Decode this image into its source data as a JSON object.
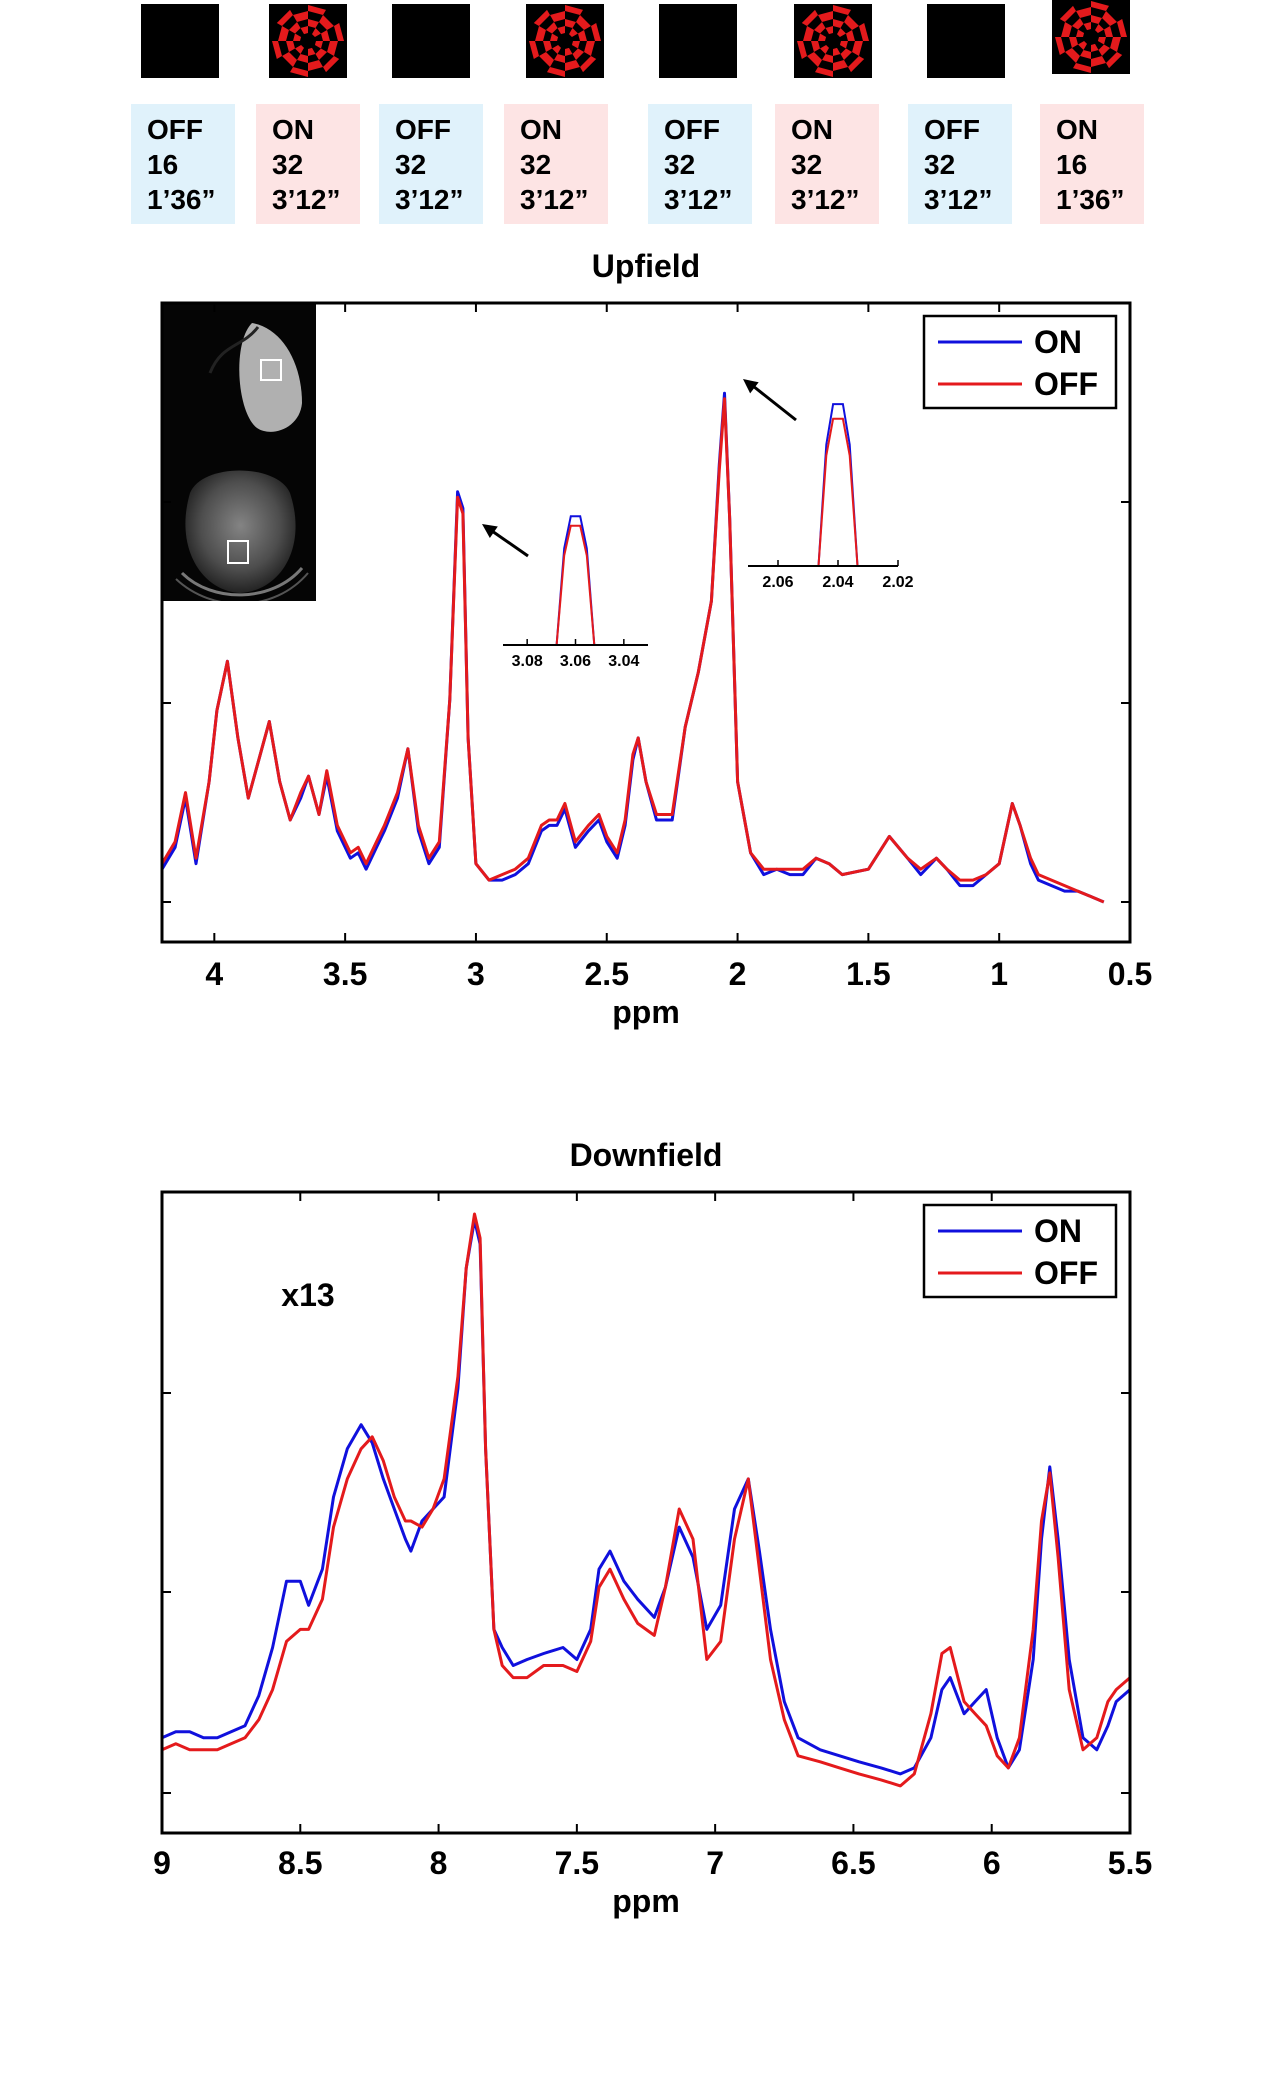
{
  "colors": {
    "on": "#1010dd",
    "off": "#e41a1c",
    "off_bg": "#e0f2fb",
    "on_bg": "#fde4e4"
  },
  "protocol": [
    {
      "state": "OFF",
      "averages": "16",
      "duration": "1’36”"
    },
    {
      "state": "ON",
      "averages": "32",
      "duration": "3’12”"
    },
    {
      "state": "OFF",
      "averages": "32",
      "duration": "3’12”"
    },
    {
      "state": "ON",
      "averages": "32",
      "duration": "3’12”"
    },
    {
      "state": "OFF",
      "averages": "32",
      "duration": "3’12”"
    },
    {
      "state": "ON",
      "averages": "32",
      "duration": "3’12”"
    },
    {
      "state": "OFF",
      "averages": "32",
      "duration": "3’12”"
    },
    {
      "state": "ON",
      "averages": "16",
      "duration": "1’36”"
    }
  ],
  "chart_data": [
    {
      "type": "line",
      "title": "Upfield",
      "xlabel": "ppm",
      "ylabel": "",
      "xlim": [
        4.2,
        0.5
      ],
      "ylim": [
        0,
        1
      ],
      "x_reversed": true,
      "x_ticks": [
        4,
        3.5,
        3,
        2.5,
        2,
        1.5,
        1,
        0.5
      ],
      "x_tick_labels": [
        "4",
        "3.5",
        "3",
        "2.5",
        "2",
        "1.5",
        "1",
        "0.5"
      ],
      "legend": [
        "ON",
        "OFF"
      ],
      "legend_position": "top-right",
      "series": [
        {
          "name": "ON",
          "color": "#1010dd",
          "x": [
            4.2,
            4.15,
            4.11,
            4.07,
            4.02,
            3.99,
            3.95,
            3.91,
            3.87,
            3.83,
            3.79,
            3.75,
            3.71,
            3.67,
            3.64,
            3.6,
            3.57,
            3.53,
            3.48,
            3.45,
            3.42,
            3.38,
            3.35,
            3.3,
            3.26,
            3.22,
            3.18,
            3.14,
            3.1,
            3.07,
            3.05,
            3.03,
            3.0,
            2.95,
            2.9,
            2.85,
            2.8,
            2.75,
            2.72,
            2.69,
            2.66,
            2.62,
            2.57,
            2.53,
            2.5,
            2.46,
            2.43,
            2.4,
            2.38,
            2.35,
            2.31,
            2.25,
            2.2,
            2.15,
            2.1,
            2.07,
            2.05,
            2.03,
            2.0,
            1.95,
            1.9,
            1.85,
            1.8,
            1.75,
            1.7,
            1.65,
            1.6,
            1.5,
            1.42,
            1.35,
            1.3,
            1.24,
            1.2,
            1.15,
            1.1,
            1.05,
            1.0,
            0.95,
            0.92,
            0.88,
            0.85,
            0.8,
            0.75,
            0.7,
            0.65,
            0.6
          ],
          "y": [
            0.06,
            0.1,
            0.19,
            0.07,
            0.22,
            0.35,
            0.44,
            0.3,
            0.19,
            0.26,
            0.33,
            0.22,
            0.15,
            0.19,
            0.23,
            0.16,
            0.23,
            0.13,
            0.08,
            0.09,
            0.06,
            0.1,
            0.13,
            0.19,
            0.28,
            0.13,
            0.07,
            0.1,
            0.37,
            0.75,
            0.72,
            0.3,
            0.07,
            0.04,
            0.04,
            0.05,
            0.07,
            0.13,
            0.14,
            0.14,
            0.17,
            0.1,
            0.13,
            0.15,
            0.11,
            0.08,
            0.14,
            0.26,
            0.3,
            0.22,
            0.15,
            0.15,
            0.32,
            0.42,
            0.55,
            0.8,
            0.93,
            0.7,
            0.22,
            0.09,
            0.05,
            0.06,
            0.05,
            0.05,
            0.08,
            0.07,
            0.05,
            0.06,
            0.12,
            0.08,
            0.05,
            0.08,
            0.06,
            0.03,
            0.03,
            0.05,
            0.07,
            0.18,
            0.14,
            0.07,
            0.04,
            0.03,
            0.02,
            0.02,
            0.01,
            0.0
          ]
        },
        {
          "name": "OFF",
          "color": "#e41a1c",
          "x": [
            4.2,
            4.15,
            4.11,
            4.07,
            4.02,
            3.99,
            3.95,
            3.91,
            3.87,
            3.83,
            3.79,
            3.75,
            3.71,
            3.67,
            3.64,
            3.6,
            3.57,
            3.53,
            3.48,
            3.45,
            3.42,
            3.38,
            3.35,
            3.3,
            3.26,
            3.22,
            3.18,
            3.14,
            3.1,
            3.07,
            3.05,
            3.03,
            3.0,
            2.95,
            2.9,
            2.85,
            2.8,
            2.75,
            2.72,
            2.69,
            2.66,
            2.62,
            2.57,
            2.53,
            2.5,
            2.46,
            2.43,
            2.4,
            2.38,
            2.35,
            2.31,
            2.25,
            2.2,
            2.15,
            2.1,
            2.07,
            2.05,
            2.03,
            2.0,
            1.95,
            1.9,
            1.85,
            1.8,
            1.75,
            1.7,
            1.65,
            1.6,
            1.5,
            1.42,
            1.35,
            1.3,
            1.24,
            1.2,
            1.15,
            1.1,
            1.05,
            1.0,
            0.95,
            0.92,
            0.88,
            0.85,
            0.8,
            0.75,
            0.7,
            0.65,
            0.6
          ],
          "y": [
            0.07,
            0.11,
            0.2,
            0.08,
            0.22,
            0.35,
            0.44,
            0.3,
            0.19,
            0.26,
            0.33,
            0.22,
            0.15,
            0.2,
            0.23,
            0.16,
            0.24,
            0.14,
            0.09,
            0.1,
            0.07,
            0.11,
            0.14,
            0.2,
            0.28,
            0.14,
            0.08,
            0.11,
            0.37,
            0.74,
            0.71,
            0.3,
            0.07,
            0.04,
            0.05,
            0.06,
            0.08,
            0.14,
            0.15,
            0.15,
            0.18,
            0.11,
            0.14,
            0.16,
            0.12,
            0.09,
            0.15,
            0.27,
            0.3,
            0.22,
            0.16,
            0.16,
            0.32,
            0.42,
            0.55,
            0.79,
            0.92,
            0.7,
            0.22,
            0.09,
            0.06,
            0.06,
            0.06,
            0.06,
            0.08,
            0.07,
            0.05,
            0.06,
            0.12,
            0.08,
            0.06,
            0.08,
            0.06,
            0.04,
            0.04,
            0.05,
            0.07,
            0.18,
            0.14,
            0.08,
            0.05,
            0.04,
            0.03,
            0.02,
            0.01,
            0.0
          ]
        }
      ],
      "insets": [
        {
          "x_ticks": [
            "3.08",
            "3.06",
            "3.04"
          ],
          "xlim": [
            3.09,
            3.03
          ],
          "peak_x": 3.06,
          "peak_on": 0.82,
          "peak_off": 0.76
        },
        {
          "x_ticks": [
            "2.06",
            "2.04",
            "2.02"
          ],
          "xlim": [
            2.07,
            2.02
          ],
          "peak_x": 2.04,
          "peak_on": 0.88,
          "peak_off": 0.8
        }
      ]
    },
    {
      "type": "line",
      "title": "Downfield",
      "xlabel": "ppm",
      "ylabel": "",
      "annotation": "x13",
      "xlim": [
        9,
        5.5
      ],
      "ylim": [
        0,
        1
      ],
      "x_reversed": true,
      "x_ticks": [
        9,
        8.5,
        8,
        7.5,
        7,
        6.5,
        6,
        5.5
      ],
      "x_tick_labels": [
        "9",
        "8.5",
        "8",
        "7.5",
        "7",
        "6.5",
        "6",
        "5.5"
      ],
      "legend": [
        "ON",
        "OFF"
      ],
      "legend_position": "top-right",
      "series": [
        {
          "name": "ON",
          "color": "#1010dd",
          "x": [
            9.0,
            8.95,
            8.9,
            8.85,
            8.8,
            8.75,
            8.7,
            8.65,
            8.6,
            8.55,
            8.5,
            8.47,
            8.42,
            8.38,
            8.33,
            8.28,
            8.24,
            8.2,
            8.16,
            8.12,
            8.1,
            8.06,
            8.02,
            7.98,
            7.93,
            7.9,
            7.87,
            7.85,
            7.83,
            7.8,
            7.77,
            7.73,
            7.68,
            7.62,
            7.55,
            7.5,
            7.45,
            7.42,
            7.38,
            7.33,
            7.28,
            7.22,
            7.18,
            7.13,
            7.08,
            7.03,
            6.98,
            6.93,
            6.88,
            6.84,
            6.8,
            6.75,
            6.7,
            6.62,
            6.55,
            6.48,
            6.4,
            6.33,
            6.28,
            6.22,
            6.18,
            6.15,
            6.1,
            6.06,
            6.02,
            5.98,
            5.94,
            5.9,
            5.85,
            5.82,
            5.79,
            5.76,
            5.72,
            5.67,
            5.62,
            5.58,
            5.55,
            5.5
          ],
          "y": [
            0.12,
            0.13,
            0.13,
            0.12,
            0.12,
            0.13,
            0.14,
            0.19,
            0.27,
            0.38,
            0.38,
            0.34,
            0.4,
            0.52,
            0.6,
            0.64,
            0.61,
            0.55,
            0.5,
            0.45,
            0.43,
            0.48,
            0.5,
            0.52,
            0.7,
            0.9,
            0.98,
            0.94,
            0.6,
            0.3,
            0.27,
            0.24,
            0.25,
            0.26,
            0.27,
            0.25,
            0.3,
            0.4,
            0.43,
            0.38,
            0.35,
            0.32,
            0.37,
            0.47,
            0.42,
            0.3,
            0.34,
            0.5,
            0.55,
            0.43,
            0.3,
            0.18,
            0.12,
            0.1,
            0.09,
            0.08,
            0.07,
            0.06,
            0.07,
            0.12,
            0.2,
            0.22,
            0.16,
            0.18,
            0.2,
            0.12,
            0.07,
            0.1,
            0.25,
            0.45,
            0.57,
            0.45,
            0.25,
            0.12,
            0.1,
            0.14,
            0.18,
            0.2
          ]
        },
        {
          "name": "OFF",
          "color": "#e41a1c",
          "x": [
            9.0,
            8.95,
            8.9,
            8.85,
            8.8,
            8.75,
            8.7,
            8.65,
            8.6,
            8.55,
            8.5,
            8.47,
            8.42,
            8.38,
            8.33,
            8.28,
            8.24,
            8.2,
            8.16,
            8.12,
            8.1,
            8.06,
            8.02,
            7.98,
            7.93,
            7.9,
            7.87,
            7.85,
            7.83,
            7.8,
            7.77,
            7.73,
            7.68,
            7.62,
            7.55,
            7.5,
            7.45,
            7.42,
            7.38,
            7.33,
            7.28,
            7.22,
            7.18,
            7.13,
            7.08,
            7.03,
            6.98,
            6.93,
            6.88,
            6.84,
            6.8,
            6.75,
            6.7,
            6.62,
            6.55,
            6.48,
            6.4,
            6.33,
            6.28,
            6.22,
            6.18,
            6.15,
            6.1,
            6.06,
            6.02,
            5.98,
            5.94,
            5.9,
            5.85,
            5.82,
            5.79,
            5.76,
            5.72,
            5.67,
            5.62,
            5.58,
            5.55,
            5.5
          ],
          "y": [
            0.1,
            0.11,
            0.1,
            0.1,
            0.1,
            0.11,
            0.12,
            0.15,
            0.2,
            0.28,
            0.3,
            0.3,
            0.35,
            0.47,
            0.55,
            0.6,
            0.62,
            0.58,
            0.52,
            0.48,
            0.48,
            0.47,
            0.5,
            0.55,
            0.72,
            0.9,
            0.99,
            0.95,
            0.6,
            0.3,
            0.24,
            0.22,
            0.22,
            0.24,
            0.24,
            0.23,
            0.28,
            0.37,
            0.4,
            0.35,
            0.31,
            0.29,
            0.37,
            0.5,
            0.45,
            0.25,
            0.28,
            0.45,
            0.55,
            0.4,
            0.25,
            0.15,
            0.09,
            0.08,
            0.07,
            0.06,
            0.05,
            0.04,
            0.06,
            0.16,
            0.26,
            0.27,
            0.18,
            0.16,
            0.14,
            0.09,
            0.07,
            0.12,
            0.3,
            0.48,
            0.56,
            0.42,
            0.2,
            0.1,
            0.12,
            0.18,
            0.2,
            0.22
          ]
        }
      ]
    }
  ]
}
